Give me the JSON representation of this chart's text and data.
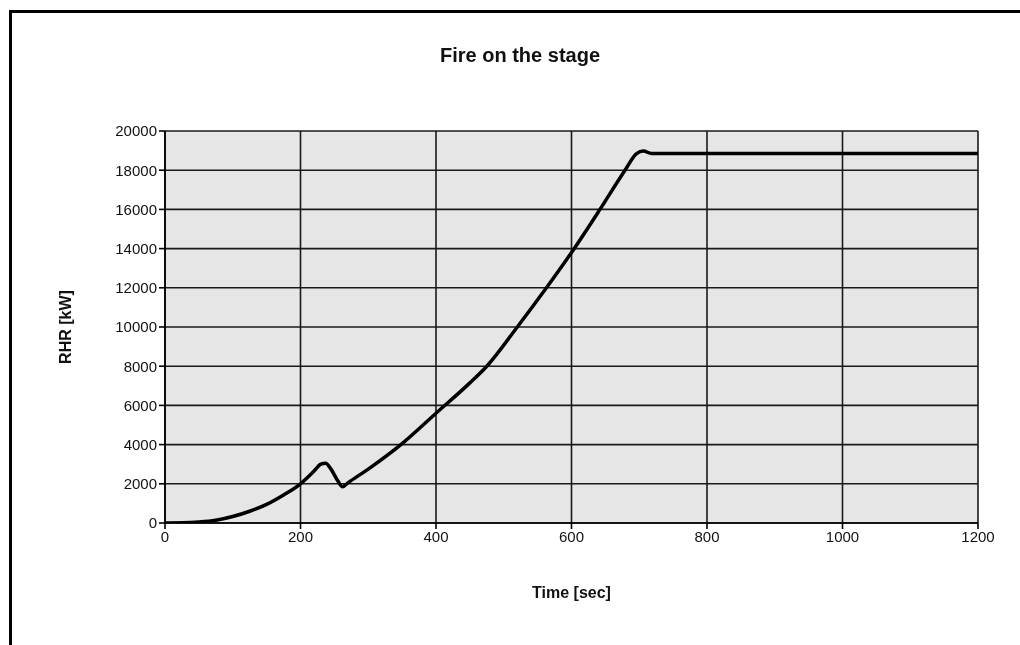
{
  "chart_data": {
    "type": "line",
    "title": "Fire on the stage",
    "xlabel": "Time [sec]",
    "ylabel": "RHR [kW]",
    "x": [
      0,
      25,
      50,
      75,
      100,
      125,
      150,
      175,
      200,
      220,
      230,
      237,
      245,
      255,
      262,
      270,
      300,
      350,
      400,
      450,
      475,
      520,
      563,
      600,
      642,
      679,
      696,
      706,
      718,
      800,
      1000,
      1200
    ],
    "series": [
      {
        "color": "#000000",
        "values": [
          0,
          10,
          50,
          140,
          330,
          600,
          950,
          1430,
          2000,
          2650,
          3000,
          3050,
          2750,
          2150,
          1850,
          2050,
          2750,
          4050,
          5600,
          7150,
          8000,
          10000,
          12000,
          13800,
          16000,
          18000,
          18850,
          18980,
          18850,
          18850,
          18850,
          18850
        ]
      }
    ],
    "xlim": [
      0,
      1200
    ],
    "ylim": [
      0,
      20000
    ],
    "xticks": [
      0,
      200,
      400,
      600,
      800,
      1000,
      1200
    ],
    "yticks": [
      0,
      2000,
      4000,
      6000,
      8000,
      10000,
      12000,
      14000,
      16000,
      18000,
      20000
    ],
    "grid": true,
    "marker": "none",
    "line_style": "solid"
  }
}
